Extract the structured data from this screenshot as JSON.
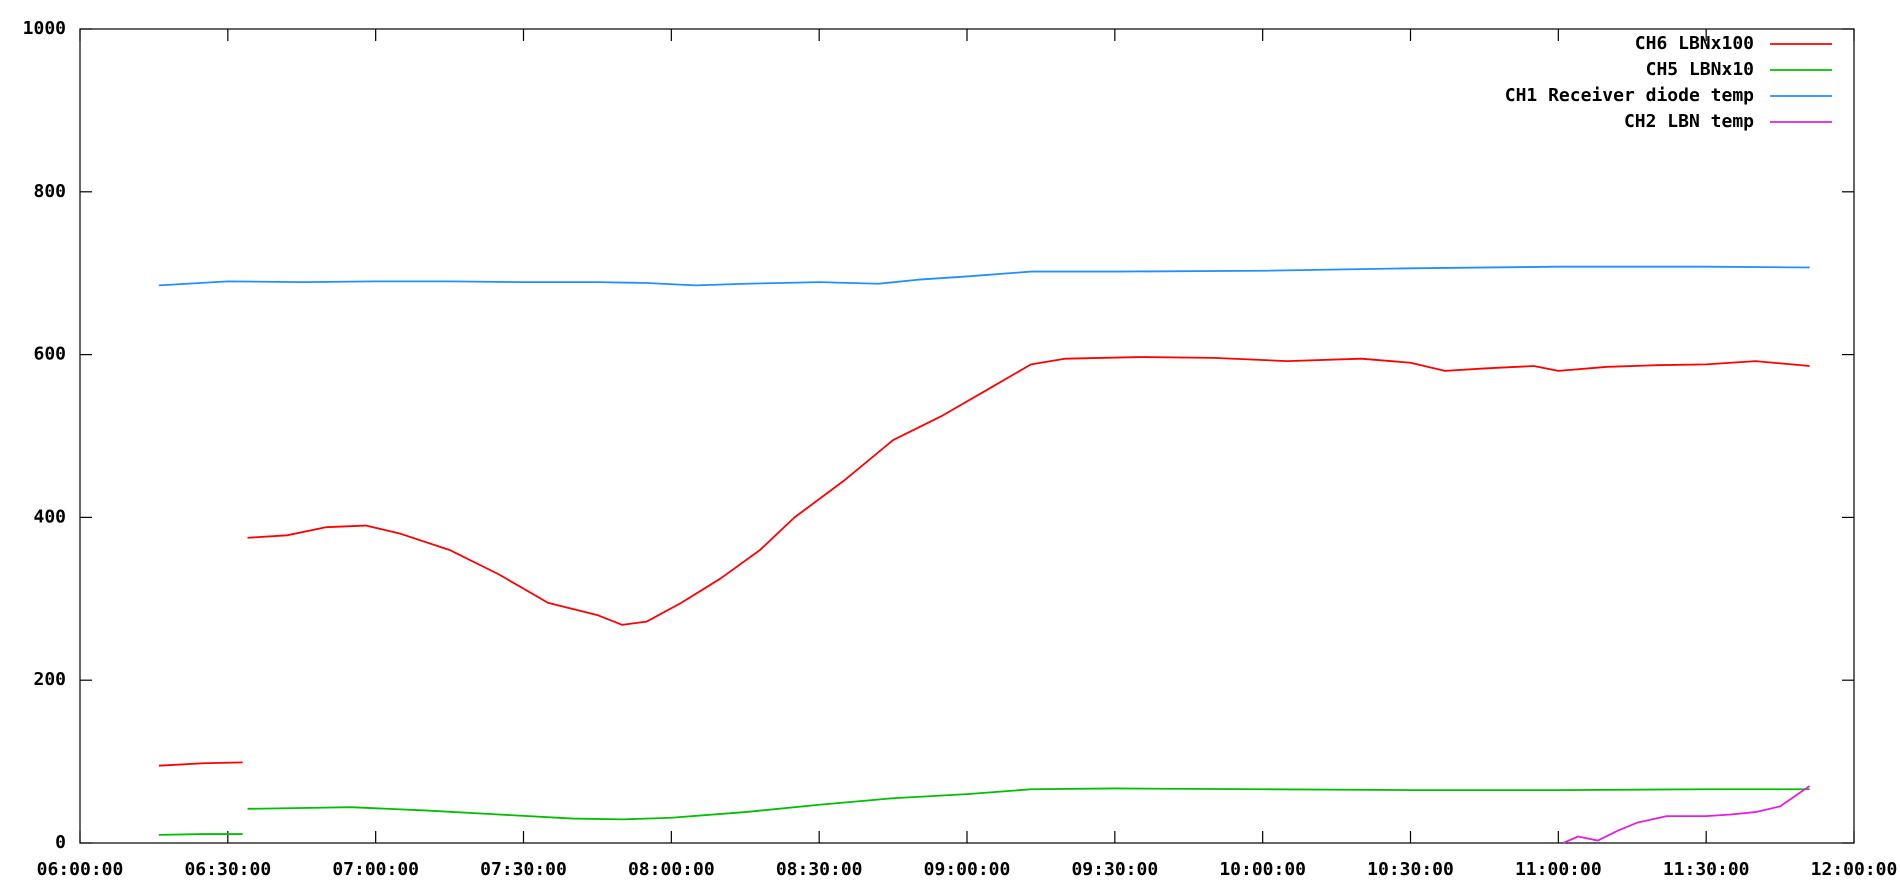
{
  "chart_data": {
    "type": "line",
    "xlim": [
      "06:00:00",
      "12:00:00"
    ],
    "xticks": [
      "06:00:00",
      "06:30:00",
      "07:00:00",
      "07:30:00",
      "08:00:00",
      "08:30:00",
      "09:00:00",
      "09:30:00",
      "10:00:00",
      "10:30:00",
      "11:00:00",
      "11:30:00",
      "12:00:00"
    ],
    "ylim": [
      0,
      1000
    ],
    "yticks": [
      0,
      200,
      400,
      600,
      800,
      1000
    ],
    "legend": "upper right",
    "series": [
      {
        "name": "CH6 LBNx100",
        "color": "#ff0000",
        "x": [
          "06:16:00",
          "06:25:00",
          "06:33:00",
          "06:33:30",
          "06:34:00",
          "06:42:00",
          "06:50:00",
          "06:58:00",
          "07:05:00",
          "07:15:00",
          "07:25:00",
          "07:35:00",
          "07:45:00",
          "07:50:00",
          "07:55:00",
          "08:02:00",
          "08:10:00",
          "08:18:00",
          "08:25:00",
          "08:35:00",
          "08:45:00",
          "08:55:00",
          "09:05:00",
          "09:13:00",
          "09:20:00",
          "09:35:00",
          "09:50:00",
          "10:05:00",
          "10:20:00",
          "10:30:00",
          "10:37:00",
          "10:45:00",
          "10:55:00",
          "11:00:00",
          "11:10:00",
          "11:20:00",
          "11:30:00",
          "11:40:00",
          "11:51:00"
        ],
        "values": [
          95,
          98,
          99,
          null,
          375,
          378,
          388,
          390,
          380,
          360,
          330,
          295,
          280,
          268,
          272,
          295,
          325,
          360,
          400,
          445,
          495,
          525,
          560,
          588,
          595,
          597,
          596,
          592,
          595,
          590,
          580,
          583,
          586,
          580,
          585,
          587,
          588,
          592,
          586
        ]
      },
      {
        "name": "CH5 LBNx10",
        "color": "#00c000",
        "x": [
          "06:16:00",
          "06:25:00",
          "06:33:00",
          "06:33:30",
          "06:34:00",
          "06:45:00",
          "06:55:00",
          "07:10:00",
          "07:25:00",
          "07:40:00",
          "07:50:00",
          "08:00:00",
          "08:15:00",
          "08:30:00",
          "08:45:00",
          "09:00:00",
          "09:13:00",
          "09:30:00",
          "10:00:00",
          "10:30:00",
          "11:00:00",
          "11:30:00",
          "11:51:00"
        ],
        "values": [
          10,
          11,
          11,
          null,
          42,
          43,
          44,
          40,
          35,
          30,
          29,
          31,
          38,
          47,
          55,
          60,
          66,
          67,
          66,
          65,
          65,
          66,
          66
        ]
      },
      {
        "name": "CH1 Receiver diode temp",
        "color": "#2090ff",
        "x": [
          "06:16:00",
          "06:30:00",
          "06:45:00",
          "07:00:00",
          "07:15:00",
          "07:30:00",
          "07:45:00",
          "07:55:00",
          "08:05:00",
          "08:15:00",
          "08:30:00",
          "08:42:00",
          "08:50:00",
          "09:00:00",
          "09:13:00",
          "09:30:00",
          "10:00:00",
          "10:30:00",
          "11:00:00",
          "11:30:00",
          "11:51:00"
        ],
        "values": [
          685,
          690,
          689,
          690,
          690,
          689,
          689,
          688,
          685,
          687,
          689,
          687,
          692,
          696,
          702,
          702,
          703,
          706,
          708,
          708,
          707
        ]
      },
      {
        "name": "CH2 LBN temp",
        "color": "#e020e0",
        "x": [
          "11:01:00",
          "11:04:00",
          "11:08:00",
          "11:12:00",
          "11:16:00",
          "11:22:00",
          "11:30:00",
          "11:35:00",
          "11:40:00",
          "11:45:00",
          "11:51:00"
        ],
        "values": [
          0,
          8,
          3,
          15,
          25,
          33,
          33,
          35,
          38,
          45,
          70
        ]
      }
    ]
  }
}
